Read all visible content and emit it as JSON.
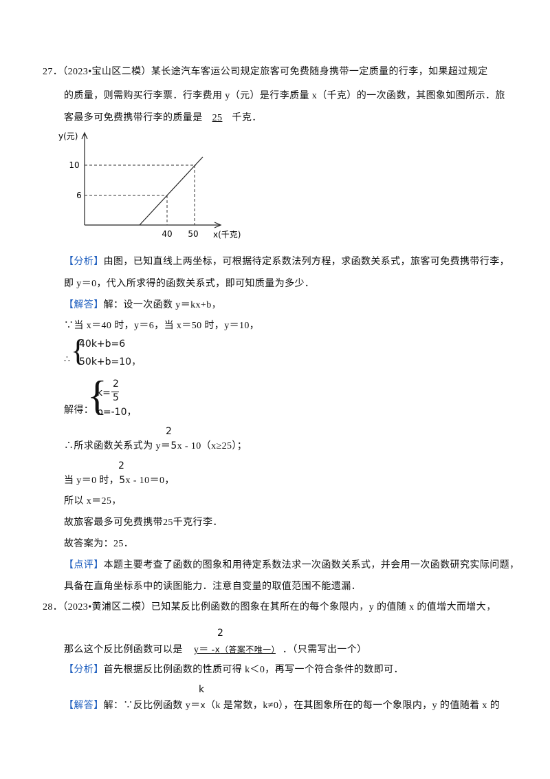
{
  "q27": {
    "number": "27．",
    "source": "（2023•宝山区二模）",
    "stem_lines": [
      "某长途汽车客运公司规定旅客可免费随身携带一定质量的行李，如果超过规定",
      "的质量，则需购买行李票．行李费用 y（元）是行李质量 x（千克）的一次函数，其图象如图所示．旅",
      "客最多可免费携带行李的质量是"
    ],
    "answer": "25",
    "answer_after": "千克．",
    "figure": {
      "y_axis_label": "y(元)",
      "x_axis_label": "x(千克)",
      "y_ticks": [
        10,
        6
      ],
      "x_ticks": [
        40,
        50
      ]
    },
    "analysis": {
      "tag": "【分析】",
      "lines": [
        "由图，已知直线上两坐标，可根据待定系数法列方程，求函数关系式，旅客可免费携带行李，",
        "即 y＝0，代入所求得的函数关系式，即可知质量为多少．"
      ]
    },
    "solution": {
      "tag": "【解答】",
      "intro": "解：设一次函数 y＝kx+b，",
      "given": "∵当 x＝40 时，y＝6，当 x＝50 时，y＝10，",
      "therefore": "∴",
      "system": [
        "40k+b=6",
        "50k+b=10，"
      ],
      "solved_label": "解得：",
      "solved": {
        "k_lhs": "k=",
        "k_num": "2",
        "k_den": "5",
        "b": "b=-10，"
      },
      "function_line": {
        "before": "∴所求函数关系式为 y＝",
        "num": "2",
        "den": "5",
        "after": "x - 10（x≥25）；"
      },
      "zero_line": {
        "before": "当 y＝0 时，",
        "num": "2",
        "den": "5",
        "after": "x - 10＝0，"
      },
      "so": "所以 x＝25，",
      "conclusion": "故旅客最多可免费携带25千克行李．",
      "final": "故答案为：25．"
    },
    "comment": {
      "tag": "【点评】",
      "lines": [
        "本题主要考查了函数的图象和用待定系数法求一次函数关系式，并会用一次函数研究实际问题，",
        "具备在直角坐标系中的读图能力．注意自变量的取值范围不能遗漏．"
      ]
    }
  },
  "q28": {
    "number": "28．",
    "source": "（2023•黄浦区二模）",
    "stem": "已知某反比例函数的图象在其所在的每个象限内，y 的值随 x 的值增大而增大，",
    "stem2": "那么这个反比例函数可以是",
    "answer": {
      "before": "y＝ -",
      "num": "2",
      "den": "x",
      "after": "（答案不唯一）"
    },
    "stem2_end": "．（只需写出一个）",
    "analysis": {
      "tag": "【分析】",
      "text": "首先根据反比例函数的性质可得 k＜0，再写一个符合条件的数即可．"
    },
    "solution": {
      "tag": "【解答】",
      "before": "解：∵反比例函数 y＝",
      "num": "k",
      "den": "x",
      "after": "（k 是常数，k≠0），在其图象所在的每一个象限内，y 的值随着 x 的"
    }
  }
}
